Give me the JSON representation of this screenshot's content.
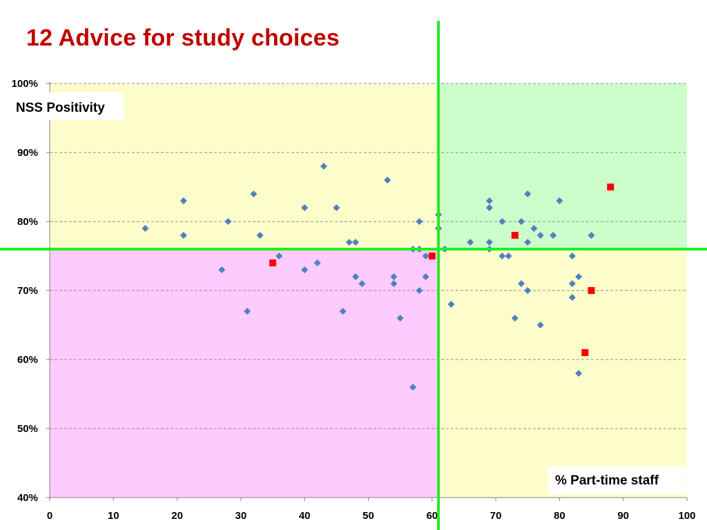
{
  "slide": {
    "title": "12 Advice for study choices"
  },
  "chart_data": {
    "type": "scatter",
    "title": "12 Advice for study choices",
    "xlabel": "% Part-time staff",
    "ylabel": "NSS Positivity",
    "xlim": [
      0,
      100
    ],
    "ylim": [
      40,
      100
    ],
    "x_ticks": [
      "0",
      "10",
      "20",
      "30",
      "40",
      "50",
      "60",
      "70",
      "80",
      "90",
      "100"
    ],
    "y_ticks": [
      "40%",
      "50%",
      "60%",
      "70%",
      "80%",
      "90%",
      "100%"
    ],
    "grid": "horizontal dashed",
    "quadrant_divider": {
      "x": 61,
      "y": 76
    },
    "colors": {
      "quadrant_top_left": "#fdfdcc",
      "quadrant_top_right": "#ccfecc",
      "quadrant_bottom_left": "#fecbfe",
      "quadrant_bottom_right": "#fdfdcc",
      "divider": "#22ee22",
      "series_points": "#4f81bd",
      "highlighted_points": "#ff0000"
    },
    "series": [
      {
        "marker": "diamond",
        "color": "#4f81bd",
        "points": [
          [
            15,
            79
          ],
          [
            21,
            83
          ],
          [
            21,
            78
          ],
          [
            27,
            73
          ],
          [
            28,
            80
          ],
          [
            31,
            67
          ],
          [
            32,
            84
          ],
          [
            33,
            78
          ],
          [
            36,
            75
          ],
          [
            40,
            82
          ],
          [
            40,
            73
          ],
          [
            42,
            74
          ],
          [
            43,
            88
          ],
          [
            45,
            82
          ],
          [
            46,
            67
          ],
          [
            47,
            77
          ],
          [
            48,
            77
          ],
          [
            48,
            72
          ],
          [
            49,
            71
          ],
          [
            53,
            86
          ],
          [
            54,
            72
          ],
          [
            54,
            71
          ],
          [
            55,
            66
          ],
          [
            57,
            76
          ],
          [
            57,
            56
          ],
          [
            58,
            80
          ],
          [
            58,
            76
          ],
          [
            58,
            70
          ],
          [
            59,
            75
          ],
          [
            59,
            72
          ],
          [
            61,
            81
          ],
          [
            61,
            79
          ],
          [
            62,
            76
          ],
          [
            63,
            68
          ],
          [
            66,
            77
          ],
          [
            69,
            83
          ],
          [
            69,
            82
          ],
          [
            69,
            77
          ],
          [
            69,
            76
          ],
          [
            71,
            80
          ],
          [
            71,
            75
          ],
          [
            72,
            75
          ],
          [
            73,
            66
          ],
          [
            74,
            80
          ],
          [
            74,
            71
          ],
          [
            75,
            84
          ],
          [
            75,
            77
          ],
          [
            75,
            70
          ],
          [
            76,
            79
          ],
          [
            77,
            78
          ],
          [
            77,
            65
          ],
          [
            79,
            78
          ],
          [
            80,
            83
          ],
          [
            82,
            75
          ],
          [
            82,
            71
          ],
          [
            82,
            69
          ],
          [
            83,
            72
          ],
          [
            83,
            58
          ],
          [
            85,
            78
          ]
        ]
      },
      {
        "marker": "square",
        "color": "#ff0000",
        "points": [
          [
            35,
            74
          ],
          [
            60,
            75
          ],
          [
            73,
            78
          ],
          [
            84,
            61
          ],
          [
            85,
            70
          ],
          [
            88,
            85
          ]
        ]
      }
    ]
  }
}
